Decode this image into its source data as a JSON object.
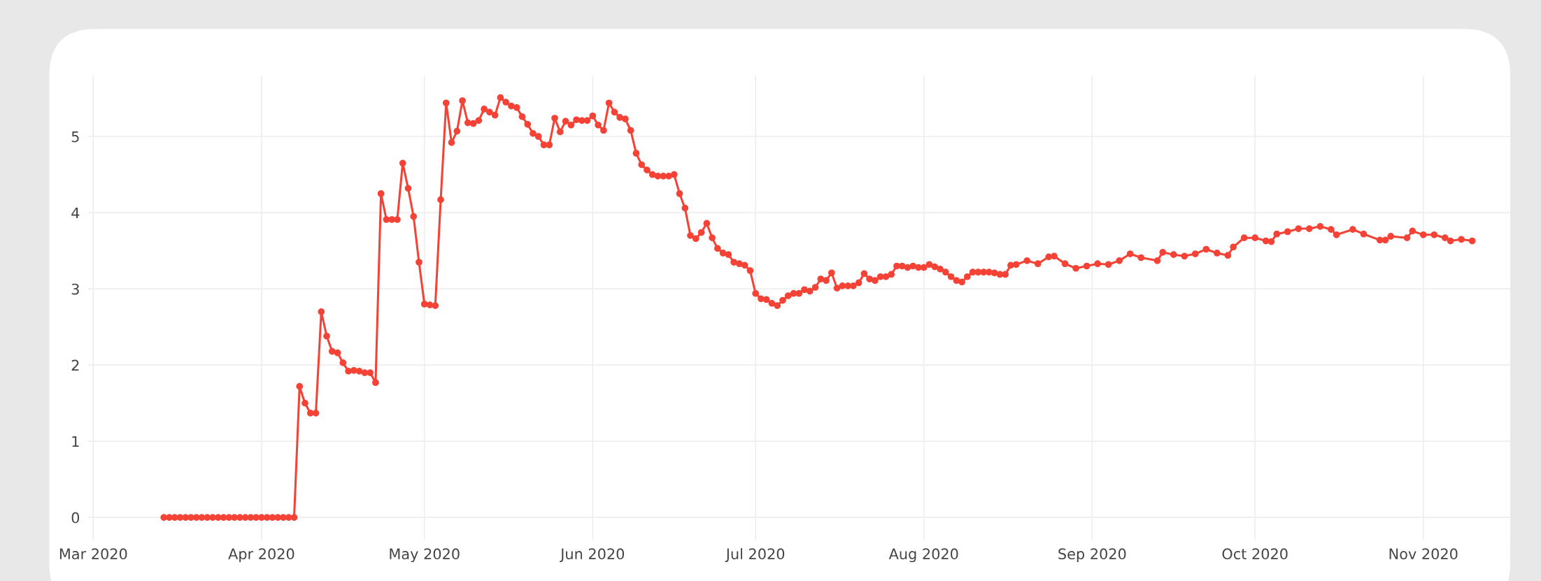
{
  "chart_data": {
    "type": "line",
    "marker": "circle",
    "line_style": "solid",
    "grid": true,
    "xlim": [
      "2020-02-29",
      "2020-11-17"
    ],
    "ylim": [
      -0.3,
      5.8
    ],
    "yticks": [
      0,
      1,
      2,
      3,
      4,
      5
    ],
    "xticks": [
      {
        "value": "2020-03-01",
        "label": "Mar 2020"
      },
      {
        "value": "2020-04-01",
        "label": "Apr 2020"
      },
      {
        "value": "2020-05-01",
        "label": "May 2020"
      },
      {
        "value": "2020-06-01",
        "label": "Jun 2020"
      },
      {
        "value": "2020-07-01",
        "label": "Jul 2020"
      },
      {
        "value": "2020-08-01",
        "label": "Aug 2020"
      },
      {
        "value": "2020-09-01",
        "label": "Sep 2020"
      },
      {
        "value": "2020-10-01",
        "label": "Oct 2020"
      },
      {
        "value": "2020-11-01",
        "label": "Nov 2020"
      }
    ],
    "series": [
      {
        "color": "#f44336",
        "x": [
          "2020-03-14",
          "2020-03-15",
          "2020-03-16",
          "2020-03-17",
          "2020-03-18",
          "2020-03-19",
          "2020-03-20",
          "2020-03-21",
          "2020-03-22",
          "2020-03-23",
          "2020-03-24",
          "2020-03-25",
          "2020-03-26",
          "2020-03-27",
          "2020-03-28",
          "2020-03-29",
          "2020-03-30",
          "2020-03-31",
          "2020-04-01",
          "2020-04-02",
          "2020-04-03",
          "2020-04-04",
          "2020-04-05",
          "2020-04-06",
          "2020-04-07",
          "2020-04-08",
          "2020-04-09",
          "2020-04-10",
          "2020-04-11",
          "2020-04-12",
          "2020-04-13",
          "2020-04-14",
          "2020-04-15",
          "2020-04-16",
          "2020-04-17",
          "2020-04-18",
          "2020-04-19",
          "2020-04-20",
          "2020-04-21",
          "2020-04-22",
          "2020-04-23",
          "2020-04-24",
          "2020-04-25",
          "2020-04-26",
          "2020-04-27",
          "2020-04-28",
          "2020-04-29",
          "2020-04-30",
          "2020-05-01",
          "2020-05-02",
          "2020-05-03",
          "2020-05-04",
          "2020-05-05",
          "2020-05-06",
          "2020-05-07",
          "2020-05-08",
          "2020-05-09",
          "2020-05-10",
          "2020-05-11",
          "2020-05-12",
          "2020-05-13",
          "2020-05-14",
          "2020-05-15",
          "2020-05-16",
          "2020-05-17",
          "2020-05-18",
          "2020-05-19",
          "2020-05-20",
          "2020-05-21",
          "2020-05-22",
          "2020-05-23",
          "2020-05-24",
          "2020-05-25",
          "2020-05-26",
          "2020-05-27",
          "2020-05-28",
          "2020-05-29",
          "2020-05-30",
          "2020-05-31",
          "2020-06-01",
          "2020-06-02",
          "2020-06-03",
          "2020-06-04",
          "2020-06-05",
          "2020-06-06",
          "2020-06-07",
          "2020-06-08",
          "2020-06-09",
          "2020-06-10",
          "2020-06-11",
          "2020-06-12",
          "2020-06-13",
          "2020-06-14",
          "2020-06-15",
          "2020-06-16",
          "2020-06-17",
          "2020-06-18",
          "2020-06-19",
          "2020-06-20",
          "2020-06-21",
          "2020-06-22",
          "2020-06-23",
          "2020-06-24",
          "2020-06-25",
          "2020-06-26",
          "2020-06-27",
          "2020-06-28",
          "2020-06-29",
          "2020-06-30",
          "2020-07-01",
          "2020-07-02",
          "2020-07-03",
          "2020-07-04",
          "2020-07-05",
          "2020-07-06",
          "2020-07-07",
          "2020-07-08",
          "2020-07-09",
          "2020-07-10",
          "2020-07-11",
          "2020-07-12",
          "2020-07-13",
          "2020-07-14",
          "2020-07-15",
          "2020-07-16",
          "2020-07-17",
          "2020-07-18",
          "2020-07-19",
          "2020-07-20",
          "2020-07-21",
          "2020-07-22",
          "2020-07-23",
          "2020-07-24",
          "2020-07-25",
          "2020-07-26",
          "2020-07-27",
          "2020-07-28",
          "2020-07-29",
          "2020-07-30",
          "2020-07-31",
          "2020-08-01",
          "2020-08-02",
          "2020-08-03",
          "2020-08-04",
          "2020-08-05",
          "2020-08-06",
          "2020-08-07",
          "2020-08-08",
          "2020-08-09",
          "2020-08-10",
          "2020-08-11",
          "2020-08-12",
          "2020-08-13",
          "2020-08-14",
          "2020-08-15",
          "2020-08-16",
          "2020-08-17",
          "2020-08-18",
          "2020-08-20",
          "2020-08-22",
          "2020-08-24",
          "2020-08-25",
          "2020-08-27",
          "2020-08-29",
          "2020-08-31",
          "2020-09-02",
          "2020-09-04",
          "2020-09-06",
          "2020-09-08",
          "2020-09-10",
          "2020-09-13",
          "2020-09-14",
          "2020-09-16",
          "2020-09-18",
          "2020-09-20",
          "2020-09-22",
          "2020-09-24",
          "2020-09-26",
          "2020-09-27",
          "2020-09-29",
          "2020-10-01",
          "2020-10-03",
          "2020-10-04",
          "2020-10-05",
          "2020-10-07",
          "2020-10-09",
          "2020-10-11",
          "2020-10-13",
          "2020-10-15",
          "2020-10-16",
          "2020-10-19",
          "2020-10-21",
          "2020-10-24",
          "2020-10-25",
          "2020-10-26",
          "2020-10-29",
          "2020-10-30",
          "2020-11-01",
          "2020-11-03",
          "2020-11-05",
          "2020-11-06",
          "2020-11-08",
          "2020-11-10"
        ],
        "values": [
          0,
          0,
          0,
          0,
          0,
          0,
          0,
          0,
          0,
          0,
          0,
          0,
          0,
          0,
          0,
          0,
          0,
          0,
          0,
          0,
          0,
          0,
          0,
          0,
          0,
          1.72,
          1.5,
          1.37,
          1.37,
          2.7,
          2.38,
          2.18,
          2.16,
          2.03,
          1.92,
          1.93,
          1.92,
          1.9,
          1.9,
          1.77,
          4.25,
          3.91,
          3.91,
          3.91,
          4.65,
          4.32,
          3.95,
          3.35,
          2.8,
          2.79,
          2.78,
          4.17,
          5.44,
          4.92,
          5.07,
          5.47,
          5.18,
          5.17,
          5.21,
          5.36,
          5.32,
          5.28,
          5.51,
          5.45,
          5.4,
          5.38,
          5.26,
          5.16,
          5.04,
          5.0,
          4.89,
          4.89,
          5.24,
          5.06,
          5.2,
          5.15,
          5.22,
          5.21,
          5.21,
          5.27,
          5.15,
          5.08,
          5.44,
          5.32,
          5.25,
          5.23,
          5.08,
          4.78,
          4.63,
          4.56,
          4.5,
          4.48,
          4.48,
          4.48,
          4.5,
          4.25,
          4.06,
          3.7,
          3.66,
          3.74,
          3.86,
          3.67,
          3.53,
          3.47,
          3.45,
          3.35,
          3.33,
          3.31,
          3.24,
          2.94,
          2.87,
          2.86,
          2.81,
          2.78,
          2.85,
          2.91,
          2.94,
          2.94,
          2.99,
          2.97,
          3.02,
          3.13,
          3.11,
          3.21,
          3.01,
          3.04,
          3.04,
          3.04,
          3.08,
          3.2,
          3.13,
          3.11,
          3.16,
          3.16,
          3.19,
          3.3,
          3.3,
          3.28,
          3.3,
          3.28,
          3.28,
          3.32,
          3.29,
          3.26,
          3.22,
          3.16,
          3.11,
          3.09,
          3.16,
          3.22,
          3.22,
          3.22,
          3.22,
          3.21,
          3.19,
          3.19,
          3.31,
          3.32,
          3.37,
          3.33,
          3.42,
          3.43,
          3.33,
          3.27,
          3.3,
          3.33,
          3.32,
          3.37,
          3.46,
          3.41,
          3.37,
          3.48,
          3.45,
          3.43,
          3.46,
          3.52,
          3.47,
          3.44,
          3.55,
          3.67,
          3.67,
          3.63,
          3.62,
          3.72,
          3.75,
          3.79,
          3.79,
          3.82,
          3.78,
          3.71,
          3.78,
          3.72,
          3.64,
          3.64,
          3.69,
          3.67,
          3.76,
          3.71,
          3.71,
          3.67,
          3.63,
          3.65,
          3.63
        ]
      }
    ]
  }
}
